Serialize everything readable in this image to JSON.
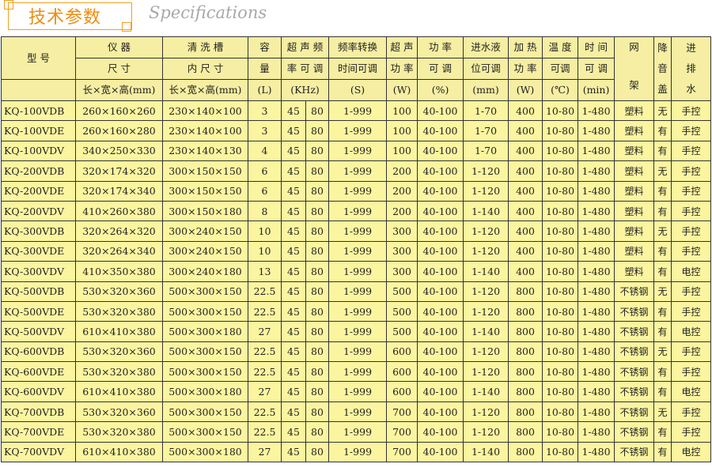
{
  "header": {
    "title": "技术参数",
    "subtitle": "Specifications"
  },
  "columns": {
    "model": "型 号",
    "size1": "仪 器",
    "size2": "尺 寸",
    "size_unit": "长×宽×高(mm)",
    "tank1": "清 洗 槽",
    "tank2": "内 尺 寸",
    "tank_unit": "长×宽×高(mm)",
    "cap1": "容",
    "cap2": "量",
    "cap_unit": "(L)",
    "freq1": "超 声 频",
    "freq2": "率 可 调",
    "freq_unit": "(KHz)",
    "switch1": "频率转换",
    "switch2": "时间可调",
    "switch_unit": "(S)",
    "power1": "超 声",
    "power2": "功 率",
    "power_unit": "(W)",
    "pct1": "功 率",
    "pct2": "可 调",
    "pct_unit": "(%)",
    "level1": "进水液",
    "level2": "位可调",
    "level_unit": "(mm)",
    "heat1": "加 热",
    "heat2": "功 率",
    "heat_unit": "(W)",
    "temp1": "温 度",
    "temp2": "可调",
    "temp_unit": "(℃)",
    "time1": "时 间",
    "time2": "可 调",
    "time_unit": "(min)",
    "rack1": "网",
    "rack2": "架",
    "lid1": "降",
    "lid2": "音",
    "lid3": "盖",
    "drain1": "进",
    "drain2": "排",
    "drain3": "水"
  },
  "rows": [
    [
      "KQ-100VDB",
      "260×160×260",
      "230×140×100",
      "3",
      "45",
      "80",
      "1-999",
      "100",
      "40-100",
      "1-70",
      "400",
      "10-80",
      "1-480",
      "塑料",
      "无",
      "手控"
    ],
    [
      "KQ-100VDE",
      "260×160×280",
      "230×140×100",
      "3",
      "45",
      "80",
      "1-999",
      "100",
      "40-100",
      "1-70",
      "400",
      "10-80",
      "1-480",
      "塑料",
      "有",
      "手控"
    ],
    [
      "KQ-100VDV",
      "340×250×330",
      "230×140×130",
      "4",
      "45",
      "80",
      "1-999",
      "100",
      "40-100",
      "1-70",
      "400",
      "10-80",
      "1-480",
      "塑料",
      "有",
      "手控"
    ],
    [
      "KQ-200VDB",
      "320×174×320",
      "300×150×150",
      "6",
      "45",
      "80",
      "1-999",
      "200",
      "40-100",
      "1-120",
      "400",
      "10-80",
      "1-480",
      "塑料",
      "无",
      "手控"
    ],
    [
      "KQ-200VDE",
      "320×174×340",
      "300×150×150",
      "6",
      "45",
      "80",
      "1-999",
      "200",
      "40-100",
      "1-120",
      "400",
      "10-80",
      "1-480",
      "塑料",
      "有",
      "手控"
    ],
    [
      "KQ-200VDV",
      "410×260×380",
      "300×150×180",
      "8",
      "45",
      "80",
      "1-999",
      "200",
      "40-100",
      "1-140",
      "400",
      "10-80",
      "1-480",
      "塑料",
      "有",
      "手控"
    ],
    [
      "KQ-300VDB",
      "320×264×320",
      "300×240×150",
      "10",
      "45",
      "80",
      "1-999",
      "300",
      "40-100",
      "1-120",
      "400",
      "10-80",
      "1-480",
      "塑料",
      "无",
      "手控"
    ],
    [
      "KQ-300VDE",
      "320×264×340",
      "300×240×150",
      "10",
      "45",
      "80",
      "1-999",
      "300",
      "40-100",
      "1-120",
      "400",
      "10-80",
      "1-480",
      "塑料",
      "有",
      "手控"
    ],
    [
      "KQ-300VDV",
      "410×350×380",
      "300×240×180",
      "13",
      "45",
      "80",
      "1-999",
      "300",
      "40-100",
      "1-140",
      "400",
      "10-80",
      "1-480",
      "塑料",
      "有",
      "电控"
    ],
    [
      "KQ-500VDB",
      "530×320×360",
      "500×300×150",
      "22.5",
      "45",
      "80",
      "1-999",
      "500",
      "40-100",
      "1-120",
      "800",
      "10-80",
      "1-480",
      "不锈钢",
      "无",
      "手控"
    ],
    [
      "KQ-500VDE",
      "530×320×380",
      "500×300×150",
      "22.5",
      "45",
      "80",
      "1-999",
      "500",
      "40-100",
      "1-120",
      "800",
      "10-80",
      "1-480",
      "不锈钢",
      "有",
      "手控"
    ],
    [
      "KQ-500VDV",
      "610×410×380",
      "500×300×180",
      "27",
      "45",
      "80",
      "1-999",
      "500",
      "40-100",
      "1-140",
      "800",
      "10-80",
      "1-480",
      "不锈钢",
      "有",
      "电控"
    ],
    [
      "KQ-600VDB",
      "530×320×360",
      "500×300×150",
      "22.5",
      "45",
      "80",
      "1-999",
      "600",
      "40-100",
      "1-120",
      "800",
      "10-80",
      "1-480",
      "不锈钢",
      "无",
      "手控"
    ],
    [
      "KQ-600VDE",
      "530×320×380",
      "500×300×150",
      "22.5",
      "45",
      "80",
      "1-999",
      "600",
      "40-100",
      "1-120",
      "800",
      "10-80",
      "1-480",
      "不锈钢",
      "有",
      "手控"
    ],
    [
      "KQ-600VDV",
      "610×410×380",
      "500×300×180",
      "27",
      "45",
      "80",
      "1-999",
      "600",
      "40-100",
      "1-140",
      "800",
      "10-80",
      "1-480",
      "不锈钢",
      "有",
      "电控"
    ],
    [
      "KQ-700VDB",
      "530×320×360",
      "500×300×150",
      "22.5",
      "45",
      "80",
      "1-999",
      "700",
      "40-100",
      "1-120",
      "800",
      "10-80",
      "1-480",
      "不锈钢",
      "无",
      "手控"
    ],
    [
      "KQ-700VDE",
      "530×320×380",
      "500×300×150",
      "22.5",
      "45",
      "80",
      "1-999",
      "700",
      "40-100",
      "1-120",
      "800",
      "10-80",
      "1-480",
      "不锈钢",
      "有",
      "手控"
    ],
    [
      "KQ-700VDV",
      "610×410×380",
      "500×300×180",
      "27",
      "45",
      "80",
      "1-999",
      "700",
      "40-100",
      "1-140",
      "800",
      "10-80",
      "1-480",
      "不锈钢",
      "有",
      "电控"
    ]
  ]
}
